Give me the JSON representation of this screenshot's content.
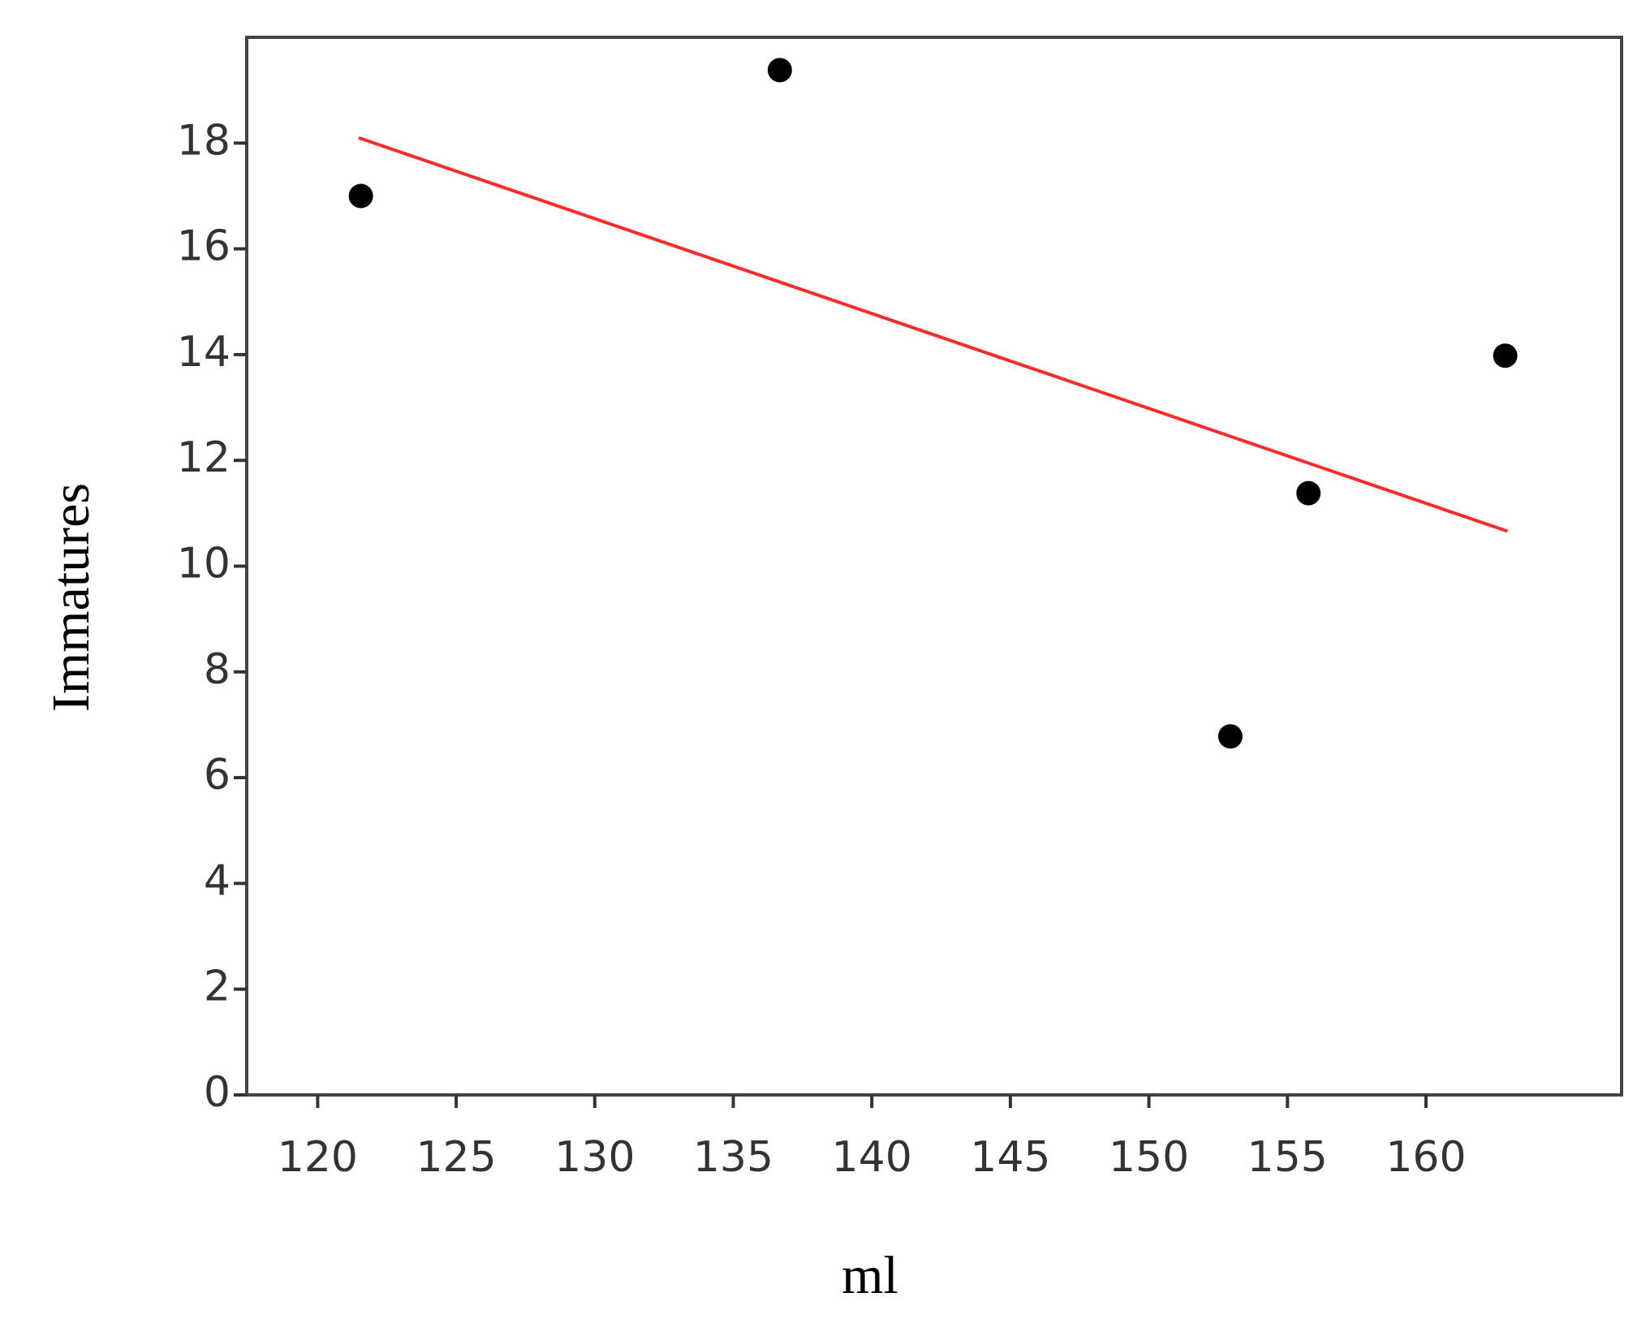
{
  "chart_data": {
    "type": "scatter",
    "x_label": "ml",
    "y_label": "Immatures",
    "xlim": [
      117.44,
      167.06
    ],
    "ylim": [
      0,
      20
    ],
    "xticks": [
      120,
      125,
      130,
      135,
      140,
      145,
      150,
      155,
      160
    ],
    "yticks": [
      0,
      2,
      4,
      6,
      8,
      10,
      12,
      14,
      16,
      18
    ],
    "series": [
      {
        "style": "points",
        "color": "#000000",
        "x": [
          121.56,
          136.68,
          152.94,
          155.76,
          162.86
        ],
        "values": [
          17.0,
          19.38,
          6.78,
          11.38,
          13.98
        ]
      },
      {
        "style": "line",
        "color": "#ff2a2a",
        "x": [
          121.48,
          162.94
        ],
        "values": [
          18.1,
          10.66
        ]
      }
    ]
  }
}
